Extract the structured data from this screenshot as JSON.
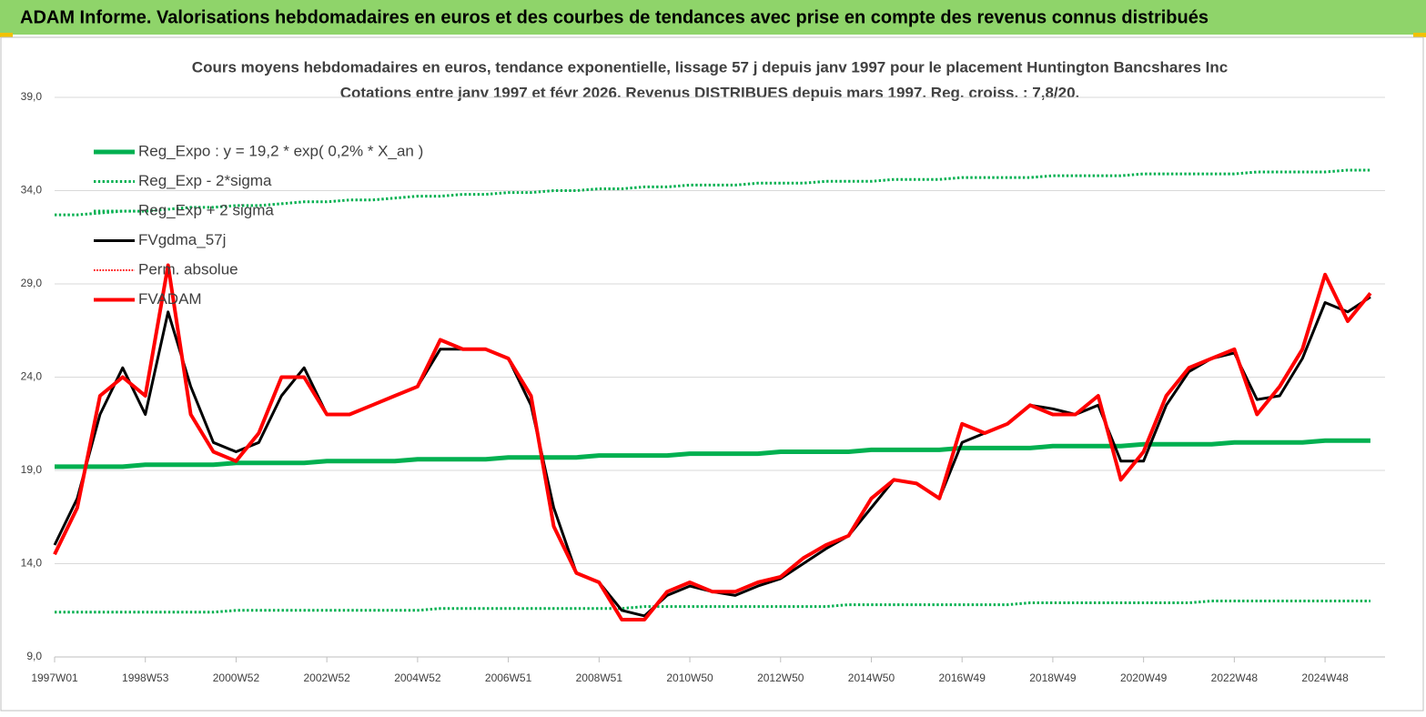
{
  "header": {
    "title": "ADAM Informe. Valorisations hebdomadaires en euros et des courbes de tendances avec prise en compte des revenus connus distribués"
  },
  "chart_data": {
    "type": "line",
    "title": "Cours moyens hebdomadaires en euros, tendance exponentielle, lissage 57 j depuis janv 1997  pour le placement Huntington Bancshares Inc",
    "subtitle": "Cotations entre janv 1997 et févr 2026. Revenus DISTRIBUES depuis mars 1997. Reg. croiss. : 7,8/20.",
    "categories": [
      "1997W01",
      null,
      null,
      null,
      "1998W53",
      null,
      null,
      null,
      "2000W52",
      null,
      null,
      null,
      "2002W52",
      null,
      null,
      null,
      "2004W52",
      null,
      null,
      null,
      "2006W51",
      null,
      null,
      null,
      "2008W51",
      null,
      null,
      null,
      "2010W50",
      null,
      null,
      null,
      "2012W50",
      null,
      null,
      null,
      "2014W50",
      null,
      null,
      null,
      "2016W49",
      null,
      null,
      null,
      "2018W49",
      null,
      null,
      null,
      "2020W49",
      null,
      null,
      null,
      "2022W48",
      null,
      null,
      null,
      "2024W48",
      null,
      null
    ],
    "ylim": [
      9,
      39
    ],
    "yticks": [
      {
        "value": 9,
        "label": "9,0"
      },
      {
        "value": 14,
        "label": "14,0"
      },
      {
        "value": 19,
        "label": "19,0"
      },
      {
        "value": 24,
        "label": "24,0"
      },
      {
        "value": 29,
        "label": "29,0"
      },
      {
        "value": 34,
        "label": "34,0"
      },
      {
        "value": 39,
        "label": "39,0"
      }
    ],
    "grid": true,
    "legend": "top-left",
    "series": [
      {
        "name": "Reg_Expo : y = 19,2 * exp( 0,2% *  X_an )",
        "color": "#00b050",
        "style": "solid",
        "width": 5,
        "values": [
          19.2,
          19.2,
          19.2,
          19.2,
          19.3,
          19.3,
          19.3,
          19.3,
          19.4,
          19.4,
          19.4,
          19.4,
          19.5,
          19.5,
          19.5,
          19.5,
          19.6,
          19.6,
          19.6,
          19.6,
          19.7,
          19.7,
          19.7,
          19.7,
          19.8,
          19.8,
          19.8,
          19.8,
          19.9,
          19.9,
          19.9,
          19.9,
          20.0,
          20.0,
          20.0,
          20.0,
          20.1,
          20.1,
          20.1,
          20.1,
          20.2,
          20.2,
          20.2,
          20.2,
          20.3,
          20.3,
          20.3,
          20.3,
          20.4,
          20.4,
          20.4,
          20.4,
          20.5,
          20.5,
          20.5,
          20.5,
          20.6,
          20.6,
          20.6
        ]
      },
      {
        "name": "Reg_Exp - 2*sigma",
        "color": "#00b050",
        "style": "dotted",
        "width": 3,
        "values": [
          11.4,
          11.4,
          11.4,
          11.4,
          11.4,
          11.4,
          11.4,
          11.4,
          11.5,
          11.5,
          11.5,
          11.5,
          11.5,
          11.5,
          11.5,
          11.5,
          11.5,
          11.6,
          11.6,
          11.6,
          11.6,
          11.6,
          11.6,
          11.6,
          11.6,
          11.6,
          11.7,
          11.7,
          11.7,
          11.7,
          11.7,
          11.7,
          11.7,
          11.7,
          11.7,
          11.8,
          11.8,
          11.8,
          11.8,
          11.8,
          11.8,
          11.8,
          11.8,
          11.9,
          11.9,
          11.9,
          11.9,
          11.9,
          11.9,
          11.9,
          11.9,
          12.0,
          12.0,
          12.0,
          12.0,
          12.0,
          12.0,
          12.0,
          12.0
        ]
      },
      {
        "name": "Reg_Exp + 2 sigma",
        "color": "#00b050",
        "style": "dotted",
        "width": 3,
        "values": [
          32.7,
          32.7,
          32.8,
          32.9,
          32.9,
          33.0,
          33.1,
          33.1,
          33.2,
          33.2,
          33.3,
          33.4,
          33.4,
          33.5,
          33.5,
          33.6,
          33.7,
          33.7,
          33.8,
          33.8,
          33.9,
          33.9,
          34.0,
          34.0,
          34.1,
          34.1,
          34.2,
          34.2,
          34.3,
          34.3,
          34.3,
          34.4,
          34.4,
          34.4,
          34.5,
          34.5,
          34.5,
          34.6,
          34.6,
          34.6,
          34.7,
          34.7,
          34.7,
          34.7,
          34.8,
          34.8,
          34.8,
          34.8,
          34.9,
          34.9,
          34.9,
          34.9,
          34.9,
          35.0,
          35.0,
          35.0,
          35.0,
          35.1,
          35.1
        ]
      },
      {
        "name": "FVgdma_57j",
        "color": "#000000",
        "style": "solid",
        "width": 3,
        "values": [
          15.0,
          17.5,
          22.0,
          24.5,
          22.0,
          27.5,
          23.5,
          20.5,
          20.0,
          20.5,
          23.0,
          24.5,
          22.0,
          22.0,
          22.5,
          23.0,
          23.5,
          25.5,
          25.5,
          25.5,
          25.0,
          22.5,
          17.0,
          13.5,
          13.0,
          11.5,
          11.2,
          12.3,
          12.8,
          12.5,
          12.3,
          12.8,
          13.2,
          14.0,
          14.8,
          15.5,
          17.0,
          18.5,
          18.3,
          17.5,
          20.5,
          21.0,
          21.5,
          22.5,
          22.3,
          22.0,
          22.5,
          19.5,
          19.5,
          22.5,
          24.3,
          25.0,
          25.3,
          22.8,
          23.0,
          25.0,
          28.0,
          27.5,
          28.3
        ]
      },
      {
        "name": "Perm. absolue",
        "color": "#ff0000",
        "style": "dotted",
        "width": 2,
        "values": [
          null,
          null,
          null,
          null,
          null,
          null,
          null,
          null,
          null,
          null,
          null,
          null,
          null,
          null,
          null,
          null,
          null,
          null,
          null,
          null,
          null,
          null,
          null,
          null,
          null,
          null,
          null,
          null,
          null,
          null,
          null,
          null,
          null,
          null,
          null,
          null,
          null,
          null,
          null,
          null,
          null,
          null,
          null,
          null,
          null,
          null,
          null,
          null,
          null,
          null,
          null,
          null,
          null,
          null,
          null,
          null,
          null,
          null,
          null
        ]
      },
      {
        "name": "FVADAM",
        "color": "#ff0000",
        "style": "solid",
        "width": 4,
        "values": [
          14.5,
          17.0,
          23.0,
          24.0,
          23.0,
          30.0,
          22.0,
          20.0,
          19.5,
          21.0,
          24.0,
          24.0,
          22.0,
          22.0,
          22.5,
          23.0,
          23.5,
          26.0,
          25.5,
          25.5,
          25.0,
          23.0,
          16.0,
          13.5,
          13.0,
          11.0,
          11.0,
          12.5,
          13.0,
          12.5,
          12.5,
          13.0,
          13.3,
          14.3,
          15.0,
          15.5,
          17.5,
          18.5,
          18.3,
          17.5,
          21.5,
          21.0,
          21.5,
          22.5,
          22.0,
          22.0,
          23.0,
          18.5,
          20.0,
          23.0,
          24.5,
          25.0,
          25.5,
          22.0,
          23.5,
          25.5,
          29.5,
          27.0,
          28.5
        ]
      }
    ]
  }
}
